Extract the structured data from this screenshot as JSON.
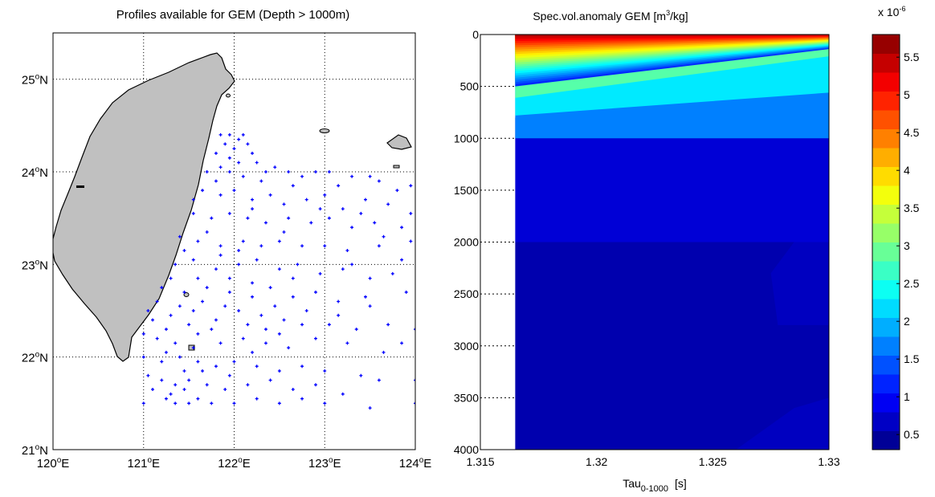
{
  "chart_data": [
    {
      "type": "scatter",
      "title": "Profiles available for GEM (Depth > 1000m)",
      "x_ticks": [
        {
          "value": 120,
          "deg": "120",
          "hemi": "E"
        },
        {
          "value": 121,
          "deg": "121",
          "hemi": "E"
        },
        {
          "value": 122,
          "deg": "122",
          "hemi": "E"
        },
        {
          "value": 123,
          "deg": "123",
          "hemi": "E"
        },
        {
          "value": 124,
          "deg": "124",
          "hemi": "E"
        }
      ],
      "y_ticks": [
        {
          "value": 21,
          "deg": "21",
          "hemi": "N"
        },
        {
          "value": 22,
          "deg": "22",
          "hemi": "N"
        },
        {
          "value": 23,
          "deg": "23",
          "hemi": "N"
        },
        {
          "value": 24,
          "deg": "24",
          "hemi": "N"
        },
        {
          "value": 25,
          "deg": "25",
          "hemi": "N"
        }
      ],
      "xlim": [
        120,
        124
      ],
      "ylim": [
        21,
        25.5
      ],
      "grid": "dotted",
      "land_color": "#c0c0c0",
      "marker_color": "#0000ff",
      "points_lon_lat": [
        [
          121.85,
          24.4
        ],
        [
          121.95,
          24.4
        ],
        [
          122.05,
          24.35
        ],
        [
          122.1,
          24.4
        ],
        [
          121.9,
          24.3
        ],
        [
          122.0,
          24.25
        ],
        [
          122.15,
          24.3
        ],
        [
          121.8,
          24.2
        ],
        [
          121.95,
          24.15
        ],
        [
          122.05,
          24.1
        ],
        [
          122.2,
          24.2
        ],
        [
          121.85,
          24.05
        ],
        [
          122.25,
          24.1
        ],
        [
          122.35,
          24.0
        ],
        [
          121.7,
          24.0
        ],
        [
          122.1,
          23.95
        ],
        [
          122.3,
          23.9
        ],
        [
          122.45,
          24.05
        ],
        [
          122.6,
          24.0
        ],
        [
          122.75,
          23.95
        ],
        [
          122.9,
          24.0
        ],
        [
          123.05,
          24.0
        ],
        [
          123.3,
          23.95
        ],
        [
          123.5,
          23.95
        ],
        [
          123.6,
          23.9
        ],
        [
          123.8,
          23.8
        ],
        [
          123.95,
          23.85
        ],
        [
          121.65,
          23.8
        ],
        [
          121.85,
          23.75
        ],
        [
          122.0,
          23.8
        ],
        [
          122.2,
          23.7
        ],
        [
          122.4,
          23.75
        ],
        [
          122.55,
          23.65
        ],
        [
          122.8,
          23.7
        ],
        [
          123.0,
          23.75
        ],
        [
          123.2,
          23.6
        ],
        [
          123.45,
          23.7
        ],
        [
          123.7,
          23.65
        ],
        [
          121.55,
          23.55
        ],
        [
          121.75,
          23.5
        ],
        [
          121.95,
          23.55
        ],
        [
          122.15,
          23.5
        ],
        [
          122.35,
          23.45
        ],
        [
          122.6,
          23.5
        ],
        [
          122.85,
          23.45
        ],
        [
          123.05,
          23.5
        ],
        [
          123.3,
          23.4
        ],
        [
          123.55,
          23.45
        ],
        [
          123.85,
          23.4
        ],
        [
          121.4,
          23.3
        ],
        [
          121.6,
          23.25
        ],
        [
          121.85,
          23.2
        ],
        [
          122.1,
          23.25
        ],
        [
          122.3,
          23.2
        ],
        [
          122.5,
          23.25
        ],
        [
          122.75,
          23.2
        ],
        [
          123.0,
          23.2
        ],
        [
          123.25,
          23.15
        ],
        [
          123.6,
          23.2
        ],
        [
          123.95,
          23.25
        ],
        [
          121.35,
          23.0
        ],
        [
          121.55,
          23.05
        ],
        [
          121.8,
          22.95
        ],
        [
          122.05,
          23.0
        ],
        [
          122.25,
          23.05
        ],
        [
          122.5,
          22.95
        ],
        [
          122.7,
          23.0
        ],
        [
          122.95,
          22.9
        ],
        [
          123.2,
          22.95
        ],
        [
          123.5,
          22.85
        ],
        [
          123.75,
          22.9
        ],
        [
          121.2,
          22.75
        ],
        [
          121.45,
          22.7
        ],
        [
          121.7,
          22.75
        ],
        [
          121.95,
          22.7
        ],
        [
          122.2,
          22.65
        ],
        [
          122.4,
          22.75
        ],
        [
          122.65,
          22.65
        ],
        [
          122.9,
          22.7
        ],
        [
          123.15,
          22.6
        ],
        [
          123.45,
          22.65
        ],
        [
          123.9,
          22.7
        ],
        [
          121.05,
          22.5
        ],
        [
          121.3,
          22.45
        ],
        [
          121.55,
          22.5
        ],
        [
          121.8,
          22.4
        ],
        [
          122.05,
          22.5
        ],
        [
          122.3,
          22.45
        ],
        [
          122.55,
          22.4
        ],
        [
          122.8,
          22.5
        ],
        [
          123.05,
          22.35
        ],
        [
          123.35,
          22.3
        ],
        [
          123.7,
          22.35
        ],
        [
          124.0,
          22.3
        ],
        [
          121.0,
          22.25
        ],
        [
          121.15,
          22.2
        ],
        [
          121.35,
          22.15
        ],
        [
          121.6,
          22.25
        ],
        [
          121.85,
          22.15
        ],
        [
          122.1,
          22.2
        ],
        [
          122.35,
          22.15
        ],
        [
          122.6,
          22.1
        ],
        [
          122.9,
          22.2
        ],
        [
          123.25,
          22.15
        ],
        [
          123.65,
          22.05
        ],
        [
          121.0,
          22.0
        ],
        [
          121.2,
          21.95
        ],
        [
          121.4,
          22.0
        ],
        [
          121.6,
          21.95
        ],
        [
          121.8,
          21.9
        ],
        [
          122.0,
          21.95
        ],
        [
          122.25,
          21.9
        ],
        [
          122.5,
          21.85
        ],
        [
          122.75,
          21.9
        ],
        [
          123.0,
          21.85
        ],
        [
          123.4,
          21.8
        ],
        [
          123.6,
          21.75
        ],
        [
          124.0,
          21.75
        ],
        [
          121.05,
          21.8
        ],
        [
          121.2,
          21.75
        ],
        [
          121.35,
          21.7
        ],
        [
          121.5,
          21.75
        ],
        [
          121.7,
          21.7
        ],
        [
          121.9,
          21.65
        ],
        [
          122.15,
          21.7
        ],
        [
          122.4,
          21.75
        ],
        [
          122.65,
          21.65
        ],
        [
          122.9,
          21.7
        ],
        [
          123.2,
          21.6
        ],
        [
          121.0,
          21.5
        ],
        [
          121.25,
          21.55
        ],
        [
          121.35,
          21.5
        ],
        [
          121.5,
          21.5
        ],
        [
          121.6,
          21.55
        ],
        [
          121.75,
          21.5
        ],
        [
          122.0,
          21.5
        ],
        [
          122.25,
          21.55
        ],
        [
          122.5,
          21.5
        ],
        [
          122.75,
          21.55
        ],
        [
          123.0,
          21.5
        ],
        [
          123.5,
          21.45
        ],
        [
          124.0,
          21.5
        ],
        [
          121.1,
          21.65
        ],
        [
          121.3,
          21.6
        ],
        [
          121.45,
          21.65
        ],
        [
          121.25,
          22.3
        ],
        [
          121.5,
          22.35
        ],
        [
          121.75,
          22.3
        ],
        [
          122.15,
          22.35
        ],
        [
          121.15,
          22.6
        ],
        [
          121.4,
          22.55
        ],
        [
          121.65,
          22.6
        ],
        [
          121.9,
          22.55
        ],
        [
          122.2,
          22.8
        ],
        [
          122.45,
          22.55
        ],
        [
          121.3,
          22.85
        ],
        [
          121.6,
          22.85
        ],
        [
          121.85,
          23.1
        ],
        [
          122.05,
          23.15
        ],
        [
          121.45,
          23.15
        ],
        [
          121.7,
          23.35
        ],
        [
          121.55,
          23.7
        ],
        [
          121.8,
          23.9
        ],
        [
          122.2,
          23.6
        ],
        [
          122.65,
          23.85
        ],
        [
          122.95,
          23.6
        ],
        [
          123.15,
          23.85
        ],
        [
          123.4,
          23.55
        ],
        [
          123.65,
          23.3
        ],
        [
          122.5,
          22.25
        ],
        [
          122.75,
          22.35
        ],
        [
          123.15,
          22.45
        ],
        [
          123.5,
          22.55
        ],
        [
          123.85,
          22.15
        ],
        [
          121.95,
          21.8
        ],
        [
          122.2,
          22.05
        ],
        [
          121.55,
          22.1
        ],
        [
          121.1,
          22.4
        ],
        [
          121.25,
          22.05
        ],
        [
          121.45,
          21.85
        ],
        [
          121.65,
          21.85
        ],
        [
          123.85,
          23.05
        ],
        [
          123.95,
          23.55
        ],
        [
          121.95,
          24.0
        ],
        [
          122.55,
          23.35
        ],
        [
          121.95,
          22.85
        ],
        [
          122.35,
          22.3
        ],
        [
          123.3,
          23.0
        ],
        [
          122.65,
          22.85
        ]
      ]
    },
    {
      "type": "heatmap",
      "title_base": "Spec.vol.anomaly GEM [m",
      "title_sup": "3",
      "title_tail": "/kg]",
      "xlabel_base": "Tau",
      "xlabel_sub": "0-1000",
      "xlabel_tail": "[s]",
      "x_ticks": [
        "1.315",
        "1.32",
        "1.325",
        "1.33"
      ],
      "x_tick_values": [
        1.315,
        1.32,
        1.325,
        1.33
      ],
      "xlim": [
        1.315,
        1.33
      ],
      "data_x_range": [
        1.3165,
        1.33
      ],
      "y_ticks": [
        "0",
        "500",
        "1000",
        "1500",
        "2000",
        "2500",
        "3000",
        "3500",
        "4000"
      ],
      "y_tick_values": [
        0,
        500,
        1000,
        1500,
        2000,
        2500,
        3000,
        3500,
        4000
      ],
      "ylim": [
        0,
        4000
      ],
      "y_reversed": true,
      "ylabel": "",
      "colorbar": {
        "exponent_label_base": "x 10",
        "exponent_label_sup": "-6",
        "min": 0.3,
        "max": 5.8,
        "tick_labels": [
          "0.5",
          "1",
          "1.5",
          "2",
          "2.5",
          "3",
          "3.5",
          "4",
          "4.5",
          "5",
          "5.5"
        ],
        "tick_values": [
          0.5,
          1,
          1.5,
          2,
          2.5,
          3,
          3.5,
          4,
          4.5,
          5,
          5.5
        ],
        "colormap": "jet"
      },
      "regions": {
        "surface_max": 5.7,
        "thermocline_boundaries_depth_at_left_right": [
          [
            0,
            0
          ],
          [
            60,
            15
          ],
          [
            140,
            40
          ],
          [
            250,
            75
          ],
          [
            380,
            110
          ],
          [
            480,
            140
          ],
          [
            610,
            210
          ],
          [
            780,
            560
          ],
          [
            1000,
            1000
          ]
        ],
        "deep_values": [
          0.9,
          0.55,
          0.65
        ]
      }
    }
  ]
}
